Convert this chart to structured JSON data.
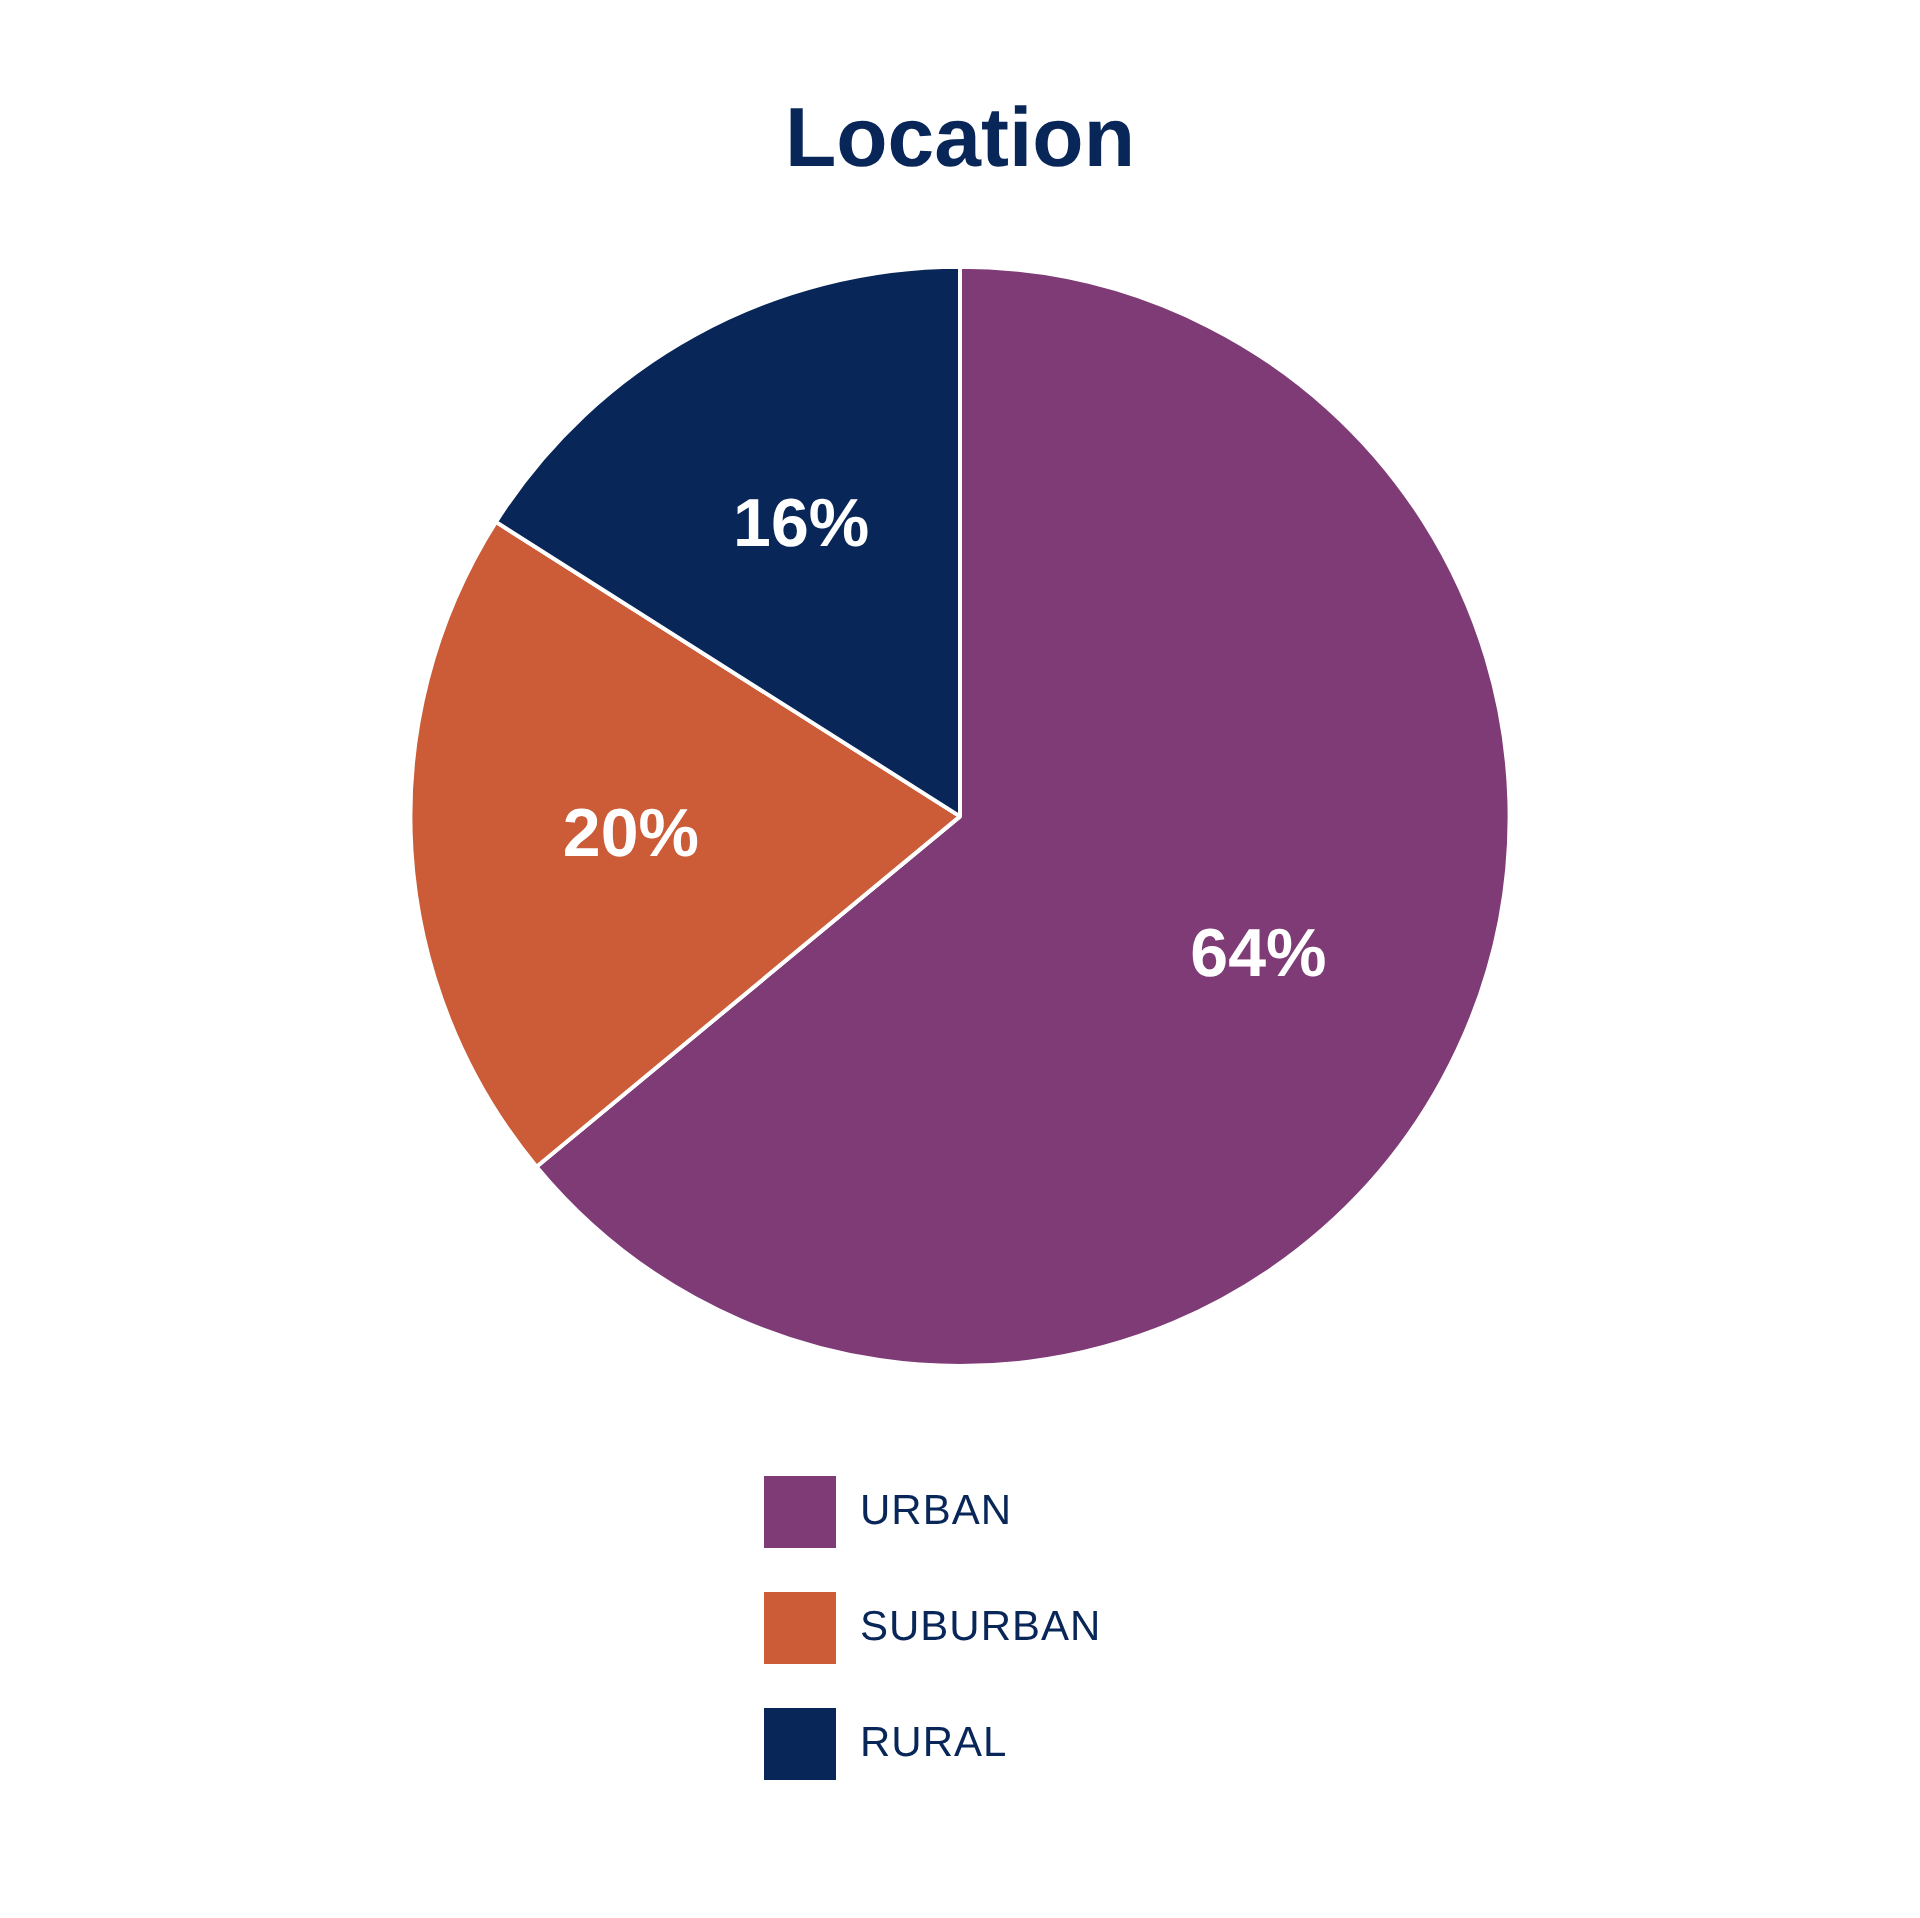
{
  "chart_data": {
    "type": "pie",
    "title": "Location",
    "categories": [
      "URBAN",
      "SUBURBAN",
      "RURAL"
    ],
    "values": [
      64,
      20,
      16
    ],
    "colors": [
      "#7f3b76",
      "#cc5b37",
      "#082658"
    ],
    "value_labels": [
      "64%",
      "20%",
      "16%"
    ],
    "legend": "bottom"
  }
}
